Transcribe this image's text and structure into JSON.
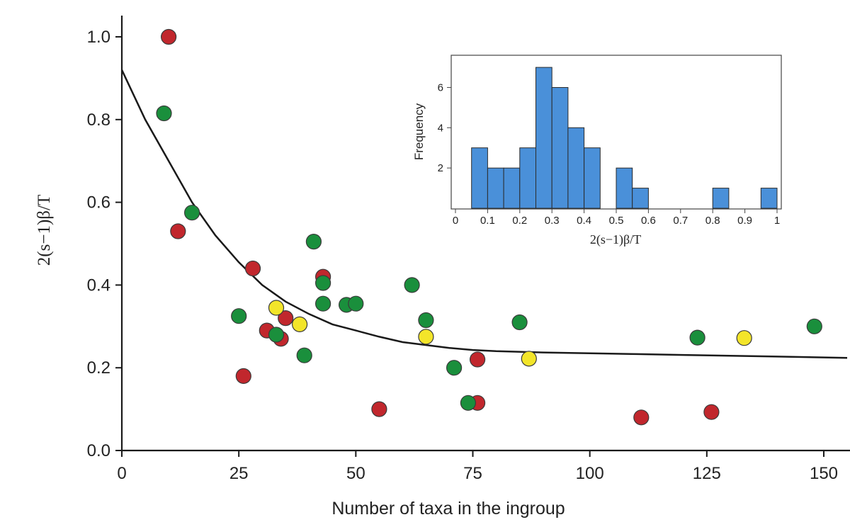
{
  "chart_data": [
    {
      "type": "scatter",
      "title": "",
      "xlabel": "Number of taxa in the ingroup",
      "ylabel": "2(s−1)β/T",
      "xlim": [
        0,
        155
      ],
      "ylim": [
        0,
        1.0
      ],
      "xticks": [
        "0",
        "25",
        "50",
        "75",
        "100",
        "125",
        "150"
      ],
      "yticks": [
        "0.0",
        "0.2",
        "0.4",
        "0.6",
        "0.8",
        "1.0"
      ],
      "series": [
        {
          "name": "red",
          "color": "#c1272d",
          "points": [
            [
              10,
              1.0
            ],
            [
              12,
              0.53
            ],
            [
              28,
              0.44
            ],
            [
              43,
              0.42
            ],
            [
              26,
              0.18
            ],
            [
              31,
              0.29
            ],
            [
              34,
              0.27
            ],
            [
              35,
              0.32
            ],
            [
              55,
              0.1
            ],
            [
              76,
              0.22
            ],
            [
              76,
              0.115
            ],
            [
              111,
              0.08
            ],
            [
              126,
              0.093
            ]
          ]
        },
        {
          "name": "green",
          "color": "#1a8f3c",
          "points": [
            [
              9,
              0.815
            ],
            [
              15,
              0.575
            ],
            [
              25,
              0.325
            ],
            [
              33,
              0.28
            ],
            [
              39,
              0.23
            ],
            [
              41,
              0.505
            ],
            [
              43,
              0.405
            ],
            [
              43,
              0.355
            ],
            [
              48,
              0.352
            ],
            [
              50,
              0.355
            ],
            [
              62,
              0.4
            ],
            [
              65,
              0.315
            ],
            [
              71,
              0.2
            ],
            [
              74,
              0.115
            ],
            [
              85,
              0.31
            ],
            [
              123,
              0.273
            ],
            [
              148,
              0.3
            ]
          ]
        },
        {
          "name": "yellow",
          "color": "#f3e52a",
          "points": [
            [
              33,
              0.345
            ],
            [
              38,
              0.305
            ],
            [
              65,
              0.275
            ],
            [
              87,
              0.222
            ],
            [
              133,
              0.272
            ]
          ]
        }
      ],
      "fit_curve": {
        "description": "decaying fit line",
        "points": [
          [
            0,
            0.92
          ],
          [
            5,
            0.8
          ],
          [
            10,
            0.7
          ],
          [
            15,
            0.6
          ],
          [
            20,
            0.52
          ],
          [
            25,
            0.455
          ],
          [
            30,
            0.4
          ],
          [
            35,
            0.36
          ],
          [
            40,
            0.33
          ],
          [
            45,
            0.305
          ],
          [
            50,
            0.29
          ],
          [
            55,
            0.275
          ],
          [
            60,
            0.262
          ],
          [
            65,
            0.255
          ],
          [
            70,
            0.248
          ],
          [
            75,
            0.243
          ],
          [
            80,
            0.24
          ],
          [
            90,
            0.237
          ],
          [
            100,
            0.235
          ],
          [
            110,
            0.233
          ],
          [
            120,
            0.231
          ],
          [
            130,
            0.229
          ],
          [
            140,
            0.227
          ],
          [
            150,
            0.225
          ],
          [
            155,
            0.224
          ]
        ]
      }
    },
    {
      "type": "bar",
      "title": "",
      "xlabel": "2(s−1)β/T",
      "ylabel": "Frequency",
      "xlim": [
        0,
        1.0
      ],
      "ylim": [
        0,
        7.6
      ],
      "xticks": [
        "0",
        "0.1",
        "0.2",
        "0.3",
        "0.4",
        "0.5",
        "0.6",
        "0.7",
        "0.8",
        "0.9",
        "1"
      ],
      "yticks": [
        "2",
        "4",
        "6"
      ],
      "bar_color": "#4a90d9",
      "bins": [
        {
          "start": 0.05,
          "end": 0.1,
          "count": 3
        },
        {
          "start": 0.1,
          "end": 0.15,
          "count": 2
        },
        {
          "start": 0.15,
          "end": 0.2,
          "count": 2
        },
        {
          "start": 0.2,
          "end": 0.25,
          "count": 3
        },
        {
          "start": 0.25,
          "end": 0.3,
          "count": 7
        },
        {
          "start": 0.3,
          "end": 0.35,
          "count": 6
        },
        {
          "start": 0.35,
          "end": 0.4,
          "count": 4
        },
        {
          "start": 0.4,
          "end": 0.45,
          "count": 3
        },
        {
          "start": 0.5,
          "end": 0.55,
          "count": 2
        },
        {
          "start": 0.55,
          "end": 0.6,
          "count": 1
        },
        {
          "start": 0.8,
          "end": 0.85,
          "count": 1
        },
        {
          "start": 0.95,
          "end": 1.0,
          "count": 1
        }
      ]
    }
  ]
}
